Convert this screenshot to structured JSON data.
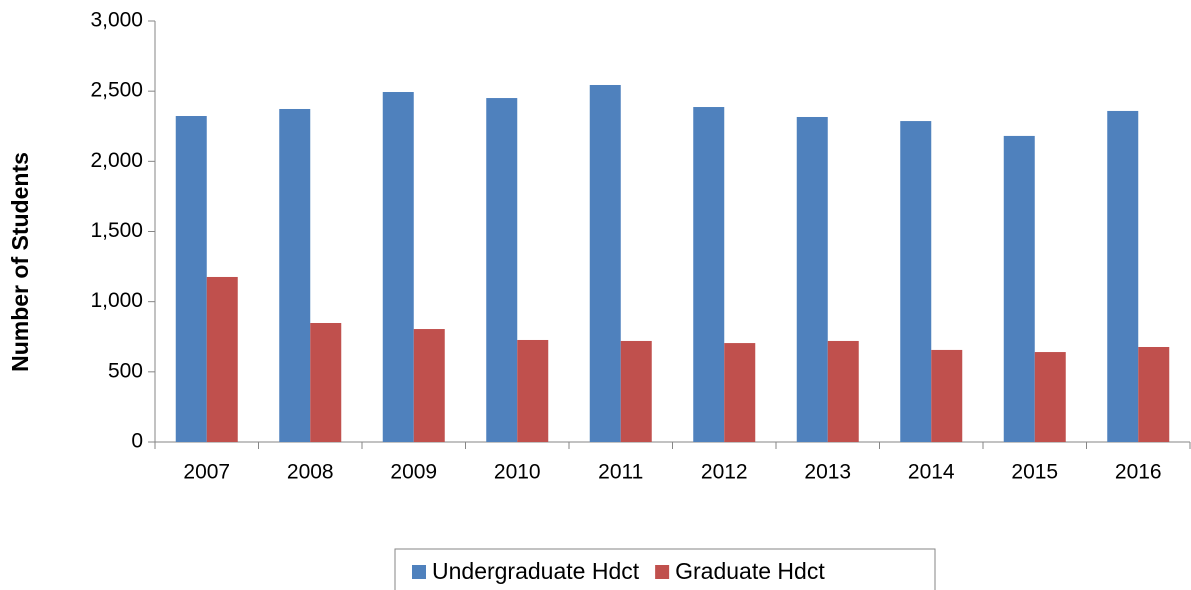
{
  "chart_data": {
    "type": "bar",
    "y_label": "Number of Students",
    "categories": [
      "2007",
      "2008",
      "2009",
      "2010",
      "2011",
      "2012",
      "2013",
      "2014",
      "2015",
      "2016"
    ],
    "series": [
      {
        "name": "Undergraduate Hdct",
        "color": "#4f81bd",
        "values": [
          2323,
          2373,
          2494,
          2451,
          2544,
          2387,
          2316,
          2287,
          2181,
          2359
        ]
      },
      {
        "name": "Graduate Hdct",
        "color": "#c0504d",
        "values": [
          1176,
          848,
          805,
          727,
          720,
          705,
          720,
          656,
          641,
          677
        ]
      }
    ],
    "ylim": [
      0,
      3000
    ],
    "yticks": [
      0,
      500,
      {
        "value": 1000,
        "label": "1,000"
      },
      {
        "value": 1500,
        "label": "1,500"
      },
      {
        "value": 2000,
        "label": "2,000"
      },
      {
        "value": 2500,
        "label": "2,500"
      },
      {
        "value": 3000,
        "label": "3,000"
      }
    ],
    "grid": false,
    "legend": "bottom"
  }
}
